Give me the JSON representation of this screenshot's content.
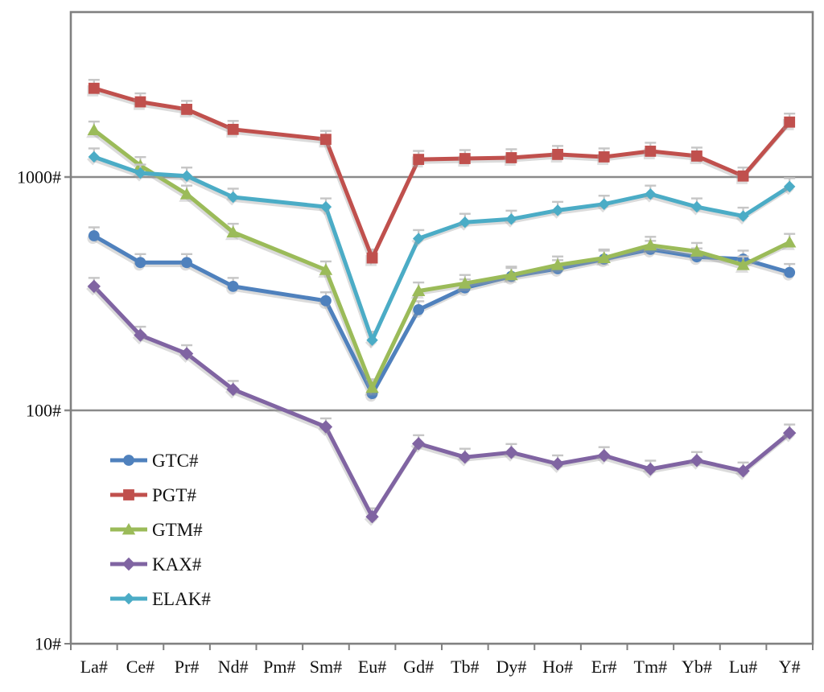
{
  "chart_data": {
    "type": "line",
    "title": "",
    "xlabel": "",
    "ylabel": "",
    "y_scale": "log",
    "ylim": [
      10,
      5000
    ],
    "grid": "horizontal-major-only",
    "legend_position": "inside-bottom-left",
    "error_bars": "small upper whiskers, light gray, on every point",
    "y_ticks": [
      {
        "label": "1000#",
        "value": 1000
      },
      {
        "label": "100#",
        "value": 100
      },
      {
        "label": "10#",
        "value": 10
      }
    ],
    "categories": [
      "La#",
      "Ce#",
      "Pr#",
      "Nd#",
      "Pm#",
      "Sm#",
      "Eu#",
      "Gd#",
      "Tb#",
      "Dy#",
      "Ho#",
      "Er#",
      "Tm#",
      "Yb#",
      "Lu#",
      "Y#"
    ],
    "series": [
      {
        "name": "GTC#",
        "color": "#4F81BD",
        "marker": "circle",
        "values": [
          560,
          430,
          430,
          340,
          null,
          295,
          118,
          270,
          335,
          375,
          405,
          445,
          490,
          455,
          445,
          390
        ]
      },
      {
        "name": "PGT#",
        "color": "#C0504D",
        "marker": "square",
        "values": [
          2400,
          2100,
          1950,
          1600,
          null,
          1450,
          450,
          1190,
          1200,
          1210,
          1250,
          1220,
          1290,
          1230,
          1010,
          1720
        ]
      },
      {
        "name": "GTM#",
        "color": "#9BBB59",
        "marker": "triangle",
        "values": [
          1590,
          1120,
          845,
          580,
          null,
          400,
          125,
          325,
          350,
          380,
          420,
          450,
          510,
          480,
          420,
          525
        ]
      },
      {
        "name": "KAX#",
        "color": "#8064A2",
        "marker": "diamond",
        "values": [
          340,
          210,
          175,
          123,
          null,
          85,
          35,
          72,
          63,
          66,
          59,
          64,
          56,
          61,
          55,
          80
        ]
      },
      {
        "name": "ELAK#",
        "color": "#4BACC6",
        "marker": "diamond-small",
        "values": [
          1220,
          1040,
          1010,
          820,
          null,
          745,
          200,
          545,
          640,
          660,
          720,
          765,
          845,
          745,
          680,
          910
        ]
      }
    ],
    "style": {
      "frame_color": "#808080",
      "gridline_color": "#8a8a8a",
      "tick_color": "#808080",
      "error_bar_color": "#c6c6c6",
      "shadow_color": "#a0a0a0",
      "background": "#ffffff"
    }
  }
}
